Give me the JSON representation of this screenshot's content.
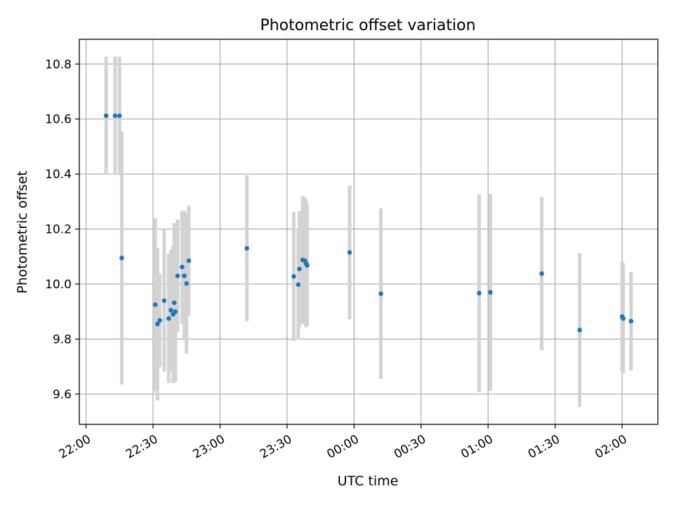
{
  "chart_data": {
    "type": "scatter",
    "title": "Photometric offset variation",
    "xlabel": "UTC time",
    "ylabel": "Photometric offset",
    "x_ticks": [
      "22:00",
      "22:30",
      "23:00",
      "23:30",
      "00:00",
      "00:30",
      "01:00",
      "01:30",
      "02:00"
    ],
    "y_ticks": [
      "9.6",
      "9.8",
      "10.0",
      "10.2",
      "10.4",
      "10.6",
      "10.8"
    ],
    "ylim": [
      9.49,
      10.89
    ],
    "xlim": [
      "21:57",
      "02:16"
    ],
    "grid": true,
    "marker_color": "#1f77b4",
    "errorbar_color": "#d3d3d3",
    "points": [
      {
        "t": "22:09",
        "y": 10.612,
        "err": 0.215
      },
      {
        "t": "22:13",
        "y": 10.612,
        "err": 0.215
      },
      {
        "t": "22:15",
        "y": 10.612,
        "err": 0.215
      },
      {
        "t": "22:16",
        "y": 10.095,
        "err": 0.46
      },
      {
        "t": "22:31",
        "y": 9.925,
        "err": 0.315
      },
      {
        "t": "22:32",
        "y": 9.855,
        "err": 0.278
      },
      {
        "t": "22:33",
        "y": 9.868,
        "err": 0.17
      },
      {
        "t": "22:35",
        "y": 9.94,
        "err": 0.258
      },
      {
        "t": "22:37",
        "y": 9.875,
        "err": 0.235
      },
      {
        "t": "22:38",
        "y": 9.905,
        "err": 0.22
      },
      {
        "t": "22:39",
        "y": 9.89,
        "err": 0.25
      },
      {
        "t": "22:39.5",
        "y": 9.932,
        "err": 0.29
      },
      {
        "t": "22:40",
        "y": 9.9,
        "err": 0.255
      },
      {
        "t": "22:41",
        "y": 10.03,
        "err": 0.205
      },
      {
        "t": "22:43",
        "y": 10.062,
        "err": 0.205
      },
      {
        "t": "22:44",
        "y": 10.03,
        "err": 0.235
      },
      {
        "t": "22:45",
        "y": 10.002,
        "err": 0.255
      },
      {
        "t": "22:46",
        "y": 10.085,
        "err": 0.2
      },
      {
        "t": "23:12",
        "y": 10.13,
        "err": 0.265
      },
      {
        "t": "23:33",
        "y": 10.028,
        "err": 0.235
      },
      {
        "t": "23:35",
        "y": 9.998,
        "err": 0.2
      },
      {
        "t": "23:35.5",
        "y": 10.055,
        "err": 0.21
      },
      {
        "t": "23:37",
        "y": 10.088,
        "err": 0.232
      },
      {
        "t": "23:38",
        "y": 10.085,
        "err": 0.232
      },
      {
        "t": "23:38.5",
        "y": 10.075,
        "err": 0.232
      },
      {
        "t": "23:39",
        "y": 10.068,
        "err": 0.22
      },
      {
        "t": "23:58",
        "y": 10.115,
        "err": 0.243
      },
      {
        "t": "00:12",
        "y": 9.965,
        "err": 0.31
      },
      {
        "t": "00:56",
        "y": 9.967,
        "err": 0.36
      },
      {
        "t": "01:01",
        "y": 9.97,
        "err": 0.358
      },
      {
        "t": "01:24",
        "y": 10.038,
        "err": 0.278
      },
      {
        "t": "01:41",
        "y": 9.833,
        "err": 0.28
      },
      {
        "t": "02:00",
        "y": 9.882,
        "err": 0.2
      },
      {
        "t": "02:00.5",
        "y": 9.875,
        "err": 0.2
      },
      {
        "t": "02:04",
        "y": 9.865,
        "err": 0.18
      }
    ]
  }
}
